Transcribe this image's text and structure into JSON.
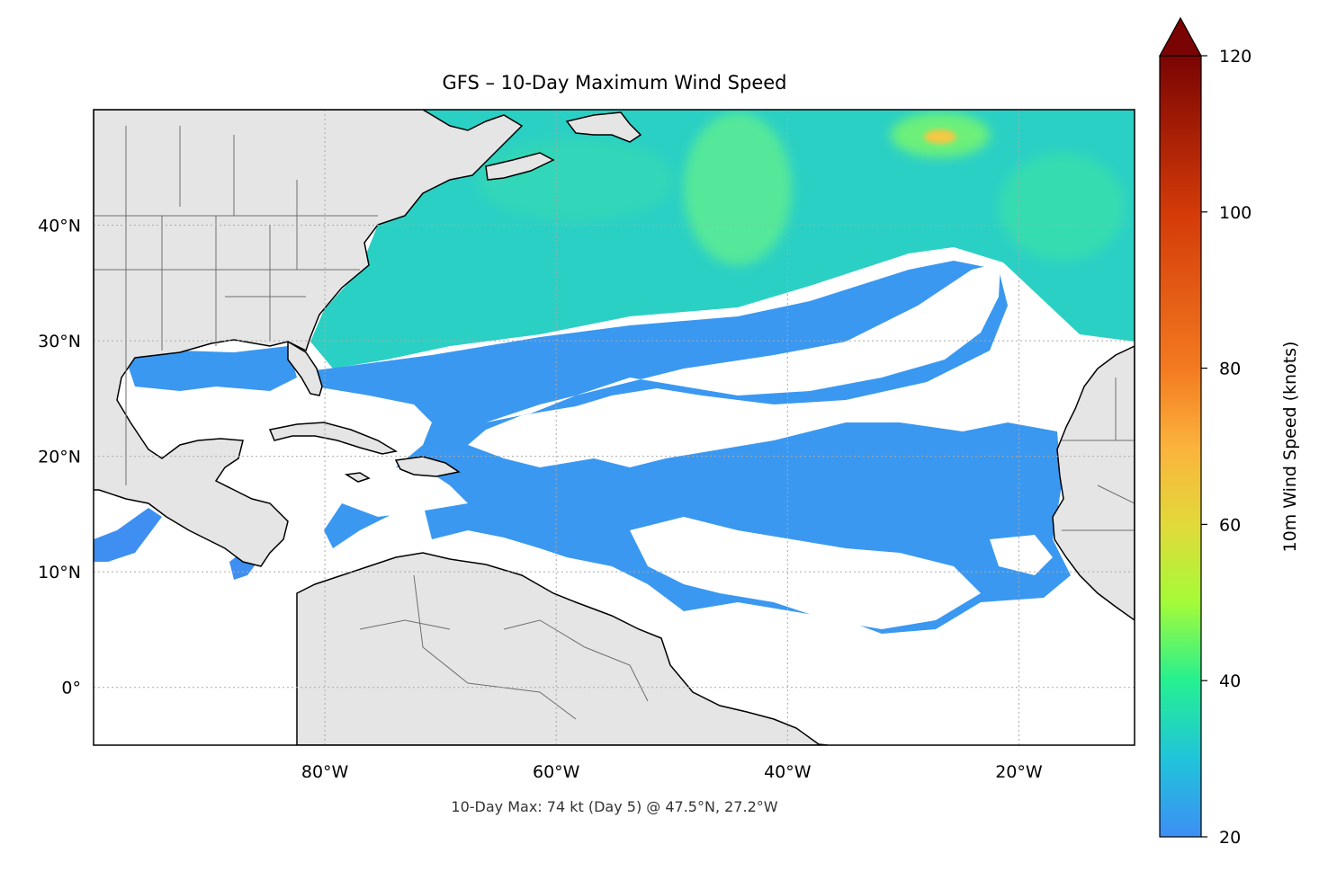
{
  "title": "GFS – 10-Day Maximum Wind Speed",
  "footer": "10-Day Max: 74 kt (Day 5) @ 47.5°N, 27.2°W",
  "map": {
    "lon_range": [
      -100,
      -10
    ],
    "lat_range": [
      -5,
      50
    ],
    "x_ticks": [
      {
        "lon": -80,
        "label": "80°W"
      },
      {
        "lon": -60,
        "label": "60°W"
      },
      {
        "lon": -40,
        "label": "40°W"
      },
      {
        "lon": -20,
        "label": "20°W"
      }
    ],
    "y_ticks": [
      {
        "lat": 40,
        "label": "40°N"
      },
      {
        "lat": 30,
        "label": "30°N"
      },
      {
        "lat": 20,
        "label": "20°N"
      },
      {
        "lat": 10,
        "label": "10°N"
      },
      {
        "lat": 0,
        "label": "0°"
      }
    ],
    "gridlines": "dotted",
    "land_color": "#e5e5e5",
    "masked_below": 20
  },
  "colorbar": {
    "label": "10m Wind Speed (knots)",
    "range": [
      20,
      120
    ],
    "extend": "max",
    "ticks": [
      {
        "value": 20,
        "label": "20"
      },
      {
        "value": 40,
        "label": "40"
      },
      {
        "value": 60,
        "label": "60"
      },
      {
        "value": 80,
        "label": "80"
      },
      {
        "value": 100,
        "label": "100"
      },
      {
        "value": 120,
        "label": "120"
      }
    ],
    "stops": [
      {
        "value": 20,
        "color": "#3d8ef5"
      },
      {
        "value": 30,
        "color": "#20c4da"
      },
      {
        "value": 40,
        "color": "#25f090"
      },
      {
        "value": 50,
        "color": "#a4fb38"
      },
      {
        "value": 60,
        "color": "#e2d93a"
      },
      {
        "value": 70,
        "color": "#fbb23c"
      },
      {
        "value": 80,
        "color": "#f37a20"
      },
      {
        "value": 100,
        "color": "#d33a08"
      },
      {
        "value": 120,
        "color": "#7a0403"
      }
    ]
  },
  "peak": {
    "value_kt": 74,
    "day": 5,
    "lat": 47.5,
    "lon": -27.2
  }
}
